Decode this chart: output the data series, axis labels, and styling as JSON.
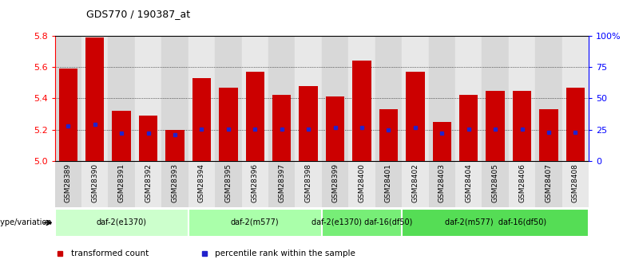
{
  "title": "GDS770 / 190387_at",
  "samples": [
    "GSM28389",
    "GSM28390",
    "GSM28391",
    "GSM28392",
    "GSM28393",
    "GSM28394",
    "GSM28395",
    "GSM28396",
    "GSM28397",
    "GSM28398",
    "GSM28399",
    "GSM28400",
    "GSM28401",
    "GSM28402",
    "GSM28403",
    "GSM28404",
    "GSM28405",
    "GSM28406",
    "GSM28407",
    "GSM28408"
  ],
  "bar_values": [
    5.59,
    5.79,
    5.32,
    5.29,
    5.2,
    5.53,
    5.47,
    5.57,
    5.42,
    5.48,
    5.41,
    5.64,
    5.33,
    5.57,
    5.25,
    5.42,
    5.45,
    5.45,
    5.33,
    5.47
  ],
  "percentile_values": [
    5.225,
    5.235,
    5.175,
    5.175,
    5.165,
    5.205,
    5.205,
    5.205,
    5.205,
    5.205,
    5.215,
    5.215,
    5.2,
    5.215,
    5.175,
    5.205,
    5.205,
    5.205,
    5.185,
    5.185
  ],
  "ylim": [
    5.0,
    5.8
  ],
  "yticks": [
    5.0,
    5.2,
    5.4,
    5.6,
    5.8
  ],
  "right_ytick_labels": [
    "0",
    "25",
    "50",
    "75",
    "100%"
  ],
  "bar_color": "#cc0000",
  "percentile_color": "#2222cc",
  "col_bg_even": "#d8d8d8",
  "col_bg_odd": "#e8e8e8",
  "group_labels": [
    "daf-2(e1370)",
    "daf-2(m577)",
    "daf-2(e1370) daf-16(df50)",
    "daf-2(m577)  daf-16(df50)"
  ],
  "group_starts": [
    0,
    5,
    10,
    13
  ],
  "group_ends": [
    5,
    10,
    13,
    20
  ],
  "group_colors": [
    "#ccffcc",
    "#aaffaa",
    "#77ee77",
    "#55dd55"
  ],
  "genotype_label": "genotype/variation",
  "legend_items": [
    {
      "label": "transformed count",
      "color": "#cc0000"
    },
    {
      "label": "percentile rank within the sample",
      "color": "#2222cc"
    }
  ]
}
